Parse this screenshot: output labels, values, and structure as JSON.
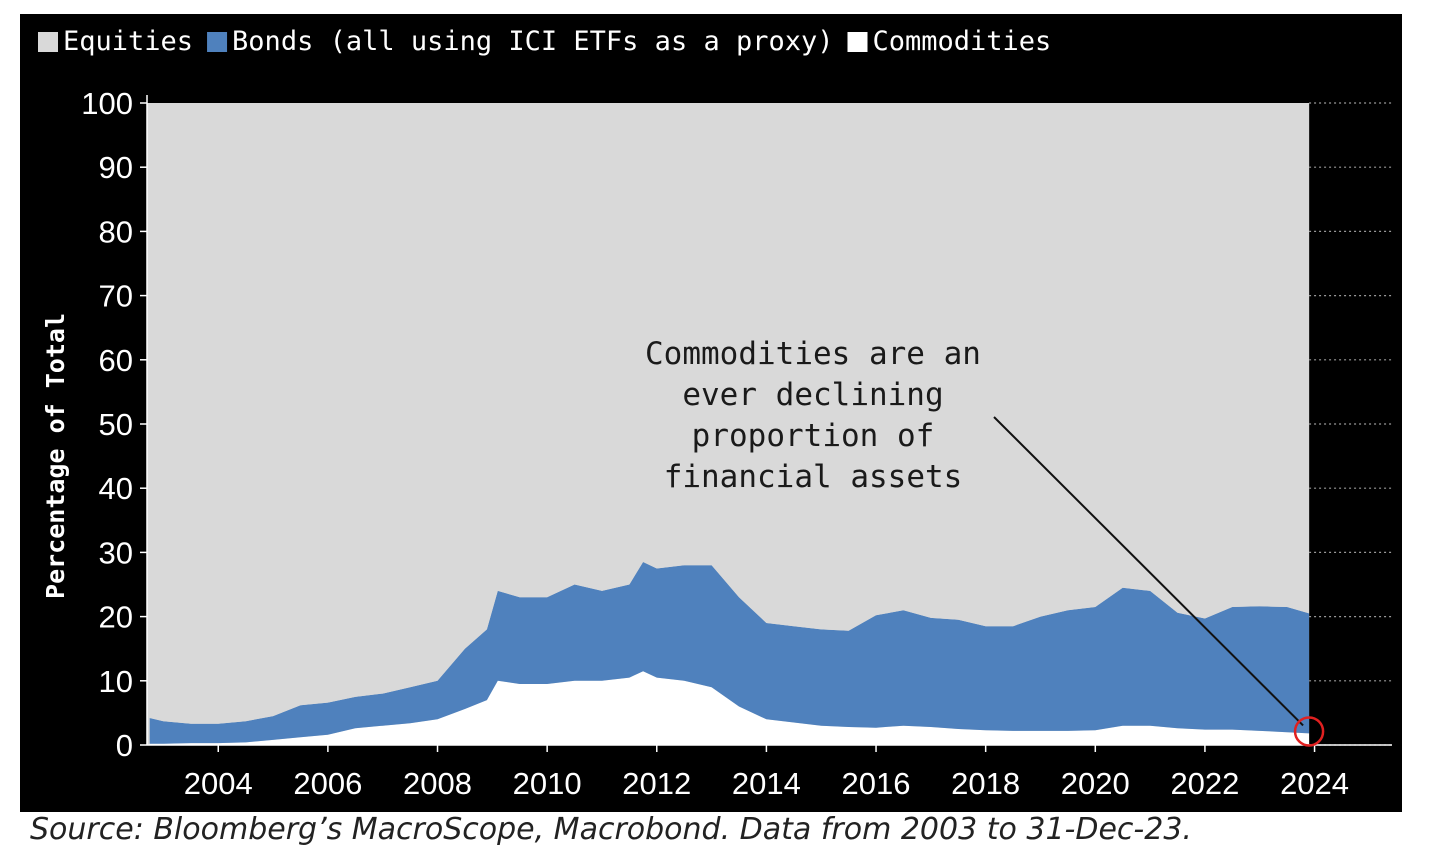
{
  "chart_data": {
    "type": "area",
    "stacked": true,
    "ylabel": "Percentage of Total",
    "ylim": [
      0,
      100
    ],
    "yticks": [
      0,
      10,
      20,
      30,
      40,
      50,
      60,
      70,
      80,
      90,
      100
    ],
    "xlim": [
      2002.7,
      2024.3
    ],
    "xticks": [
      2004,
      2006,
      2008,
      2010,
      2012,
      2014,
      2016,
      2018,
      2020,
      2022,
      2024
    ],
    "legend": {
      "placement": "top-left",
      "entries": [
        {
          "label": "Equities",
          "color": "#d9d9d9"
        },
        {
          "label": "Bonds (all using ICI ETFs as a proxy)",
          "color": "#4f81bd"
        },
        {
          "label": "Commodities",
          "color": "#ffffff"
        }
      ]
    },
    "x": [
      2002.75,
      2003.0,
      2003.5,
      2004.0,
      2004.5,
      2005.0,
      2005.5,
      2006.0,
      2006.5,
      2007.0,
      2007.5,
      2008.0,
      2008.5,
      2008.9,
      2009.1,
      2009.5,
      2010.0,
      2010.5,
      2011.0,
      2011.5,
      2011.75,
      2012.0,
      2012.5,
      2013.0,
      2013.5,
      2014.0,
      2014.5,
      2015.0,
      2015.5,
      2016.0,
      2016.5,
      2017.0,
      2017.5,
      2018.0,
      2018.5,
      2019.0,
      2019.5,
      2020.0,
      2020.5,
      2021.0,
      2021.5,
      2022.0,
      2022.5,
      2023.0,
      2023.5,
      2023.9
    ],
    "series": [
      {
        "name": "Commodities",
        "color": "#ffffff",
        "values": [
          0.2,
          0.2,
          0.3,
          0.3,
          0.4,
          0.8,
          1.2,
          1.6,
          2.6,
          3.0,
          3.4,
          4.0,
          5.6,
          7.0,
          10.0,
          9.5,
          9.5,
          10.0,
          10.0,
          10.5,
          11.5,
          10.5,
          10.0,
          9.0,
          6.0,
          4.0,
          3.5,
          3.0,
          2.8,
          2.7,
          3.0,
          2.8,
          2.5,
          2.3,
          2.2,
          2.2,
          2.2,
          2.3,
          3.0,
          3.0,
          2.6,
          2.4,
          2.4,
          2.2,
          2.0,
          1.8
        ]
      },
      {
        "name": "Bonds (all using ICI ETFs as a proxy)",
        "color": "#4f81bd",
        "values": [
          4.0,
          3.5,
          3.0,
          3.0,
          3.3,
          3.7,
          5.0,
          5.0,
          4.9,
          5.0,
          5.6,
          6.0,
          9.4,
          11.0,
          14.0,
          13.5,
          13.5,
          15.0,
          14.0,
          14.5,
          17.0,
          17.0,
          18.0,
          19.0,
          17.0,
          15.0,
          15.0,
          15.0,
          15.0,
          17.5,
          18.0,
          17.0,
          17.0,
          16.2,
          16.3,
          17.8,
          18.8,
          19.2,
          21.5,
          21.0,
          18.0,
          17.3,
          19.1,
          19.4,
          19.5,
          18.7
        ]
      },
      {
        "name": "Equities",
        "color": "#d9d9d9",
        "values": [
          95.8,
          96.3,
          96.7,
          96.7,
          96.3,
          95.5,
          93.8,
          93.4,
          92.5,
          92.0,
          91.0,
          90.0,
          85.0,
          82.0,
          76.0,
          77.0,
          77.0,
          75.0,
          76.0,
          75.0,
          71.5,
          72.5,
          72.0,
          72.0,
          77.0,
          81.0,
          81.5,
          82.0,
          82.2,
          79.8,
          79.0,
          80.2,
          80.5,
          81.5,
          81.5,
          80.0,
          79.0,
          78.5,
          75.5,
          76.0,
          79.4,
          80.3,
          78.5,
          78.4,
          78.5,
          79.5
        ]
      }
    ],
    "annotations": [
      {
        "lines": [
          "Commodities are an",
          "ever declining",
          "proportion of",
          "financial assets"
        ],
        "points_to": {
          "x": 2023.9,
          "y": 1.8
        }
      }
    ]
  },
  "source_note": "Source: Bloomberg’s MacroScope, Macrobond. Data from 2003 to 31-Dec-23."
}
